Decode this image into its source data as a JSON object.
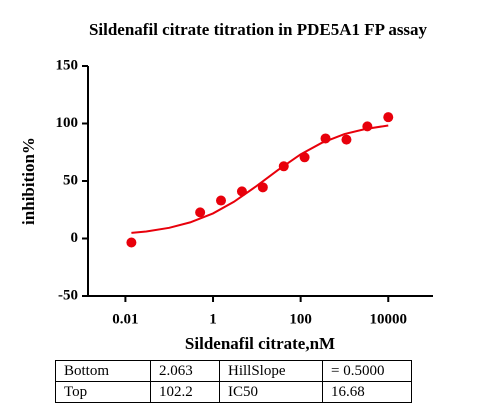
{
  "chart_data": {
    "type": "scatter",
    "title": "Sildenafil citrate titration in PDE5A1 FP assay",
    "x_label": "Sildenafil citrate,nM",
    "y_label": "inhibition%",
    "xscale": "log",
    "xlim": [
      0.0014,
      105000
    ],
    "xticks": [
      0.01,
      1,
      100,
      10000
    ],
    "ylim": [
      -50,
      150
    ],
    "yticks": [
      -50,
      0,
      50,
      100,
      150
    ],
    "series": [
      {
        "type": "scatter",
        "color": "#e8000b",
        "x": [
          0.0137,
          0.508,
          1.52,
          4.57,
          13.7,
          41.2,
          123,
          370,
          1111,
          3333,
          10000
        ],
        "values": [
          -3.5,
          22.7,
          33,
          41,
          44.5,
          62.8,
          70.6,
          87,
          86,
          97.5,
          105.5
        ]
      },
      {
        "type": "line",
        "color": "#e8000b",
        "x": [
          0.0137,
          0.03,
          0.1,
          0.3,
          1,
          3,
          10,
          30,
          100,
          300,
          1000,
          3000,
          10000
        ],
        "values": [
          4.85,
          6.1,
          9.3,
          14.0,
          21.8,
          31.9,
          45.8,
          59.4,
          73.2,
          83.1,
          90.8,
          95.2,
          98.3
        ]
      }
    ]
  },
  "table": {
    "rows": [
      [
        "Bottom",
        "2.063",
        "HillSlope",
        "= 0.5000"
      ],
      [
        "Top",
        "102.2",
        "IC50",
        "16.68"
      ]
    ]
  }
}
